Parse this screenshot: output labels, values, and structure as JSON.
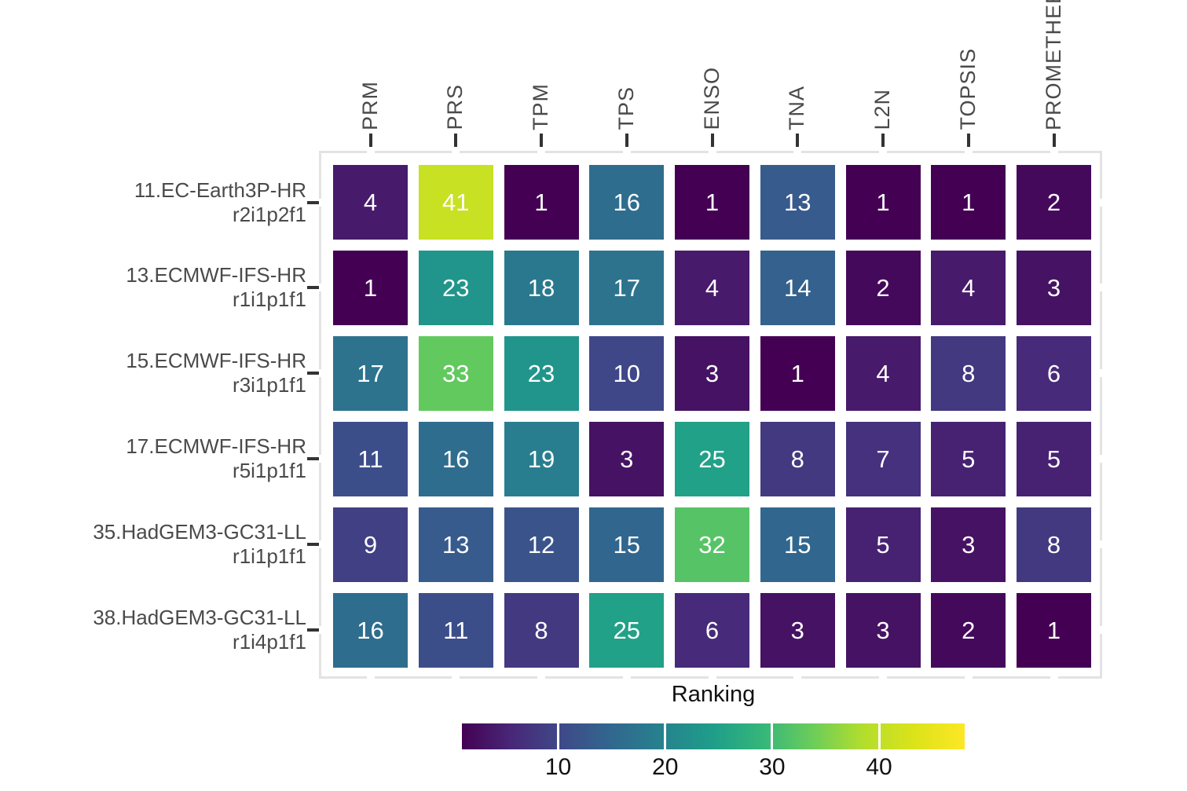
{
  "chart_data": {
    "type": "heatmap",
    "legend_title": "Ranking",
    "legend_position": "bottom",
    "x_categories": [
      "PRM",
      "PRS",
      "TPM",
      "TPS",
      "ENSO",
      "TNA",
      "L2N",
      "TOPSIS",
      "PROMETHEE"
    ],
    "rows": [
      {
        "label_line1": "11.EC-Earth3P-HR",
        "label_line2": "r2i1p2f1",
        "values": [
          4,
          41,
          1,
          16,
          1,
          13,
          1,
          1,
          2
        ]
      },
      {
        "label_line1": "13.ECMWF-IFS-HR",
        "label_line2": "r1i1p1f1",
        "values": [
          1,
          23,
          18,
          17,
          4,
          14,
          2,
          4,
          3
        ]
      },
      {
        "label_line1": "15.ECMWF-IFS-HR",
        "label_line2": "r3i1p1f1",
        "values": [
          17,
          33,
          23,
          10,
          3,
          1,
          4,
          8,
          6
        ]
      },
      {
        "label_line1": "17.ECMWF-IFS-HR",
        "label_line2": "r5i1p1f1",
        "values": [
          11,
          16,
          19,
          3,
          25,
          8,
          7,
          5,
          5
        ]
      },
      {
        "label_line1": "35.HadGEM3-GC31-LL",
        "label_line2": "r1i1p1f1",
        "values": [
          9,
          13,
          12,
          15,
          32,
          15,
          5,
          3,
          8
        ]
      },
      {
        "label_line1": "38.HadGEM3-GC31-LL",
        "label_line2": "r1i4p1f1",
        "values": [
          16,
          11,
          8,
          25,
          6,
          3,
          3,
          2,
          1
        ]
      }
    ],
    "color_scale": {
      "palette": "viridis",
      "domain": [
        1,
        48
      ],
      "stops": [
        "#440154",
        "#482878",
        "#3E4A89",
        "#31688E",
        "#26828E",
        "#1F9E89",
        "#35B779",
        "#6DCD59",
        "#B4DE2C",
        "#DCE319",
        "#FDE725"
      ]
    },
    "colorbar_ticks": [
      10,
      20,
      30,
      40
    ],
    "cell_text_color": "#ffffff",
    "axis_text_color": "#4a4a4a",
    "tick_color": "#333333",
    "panel_border_color": "#e3e3e3",
    "grid": false
  }
}
